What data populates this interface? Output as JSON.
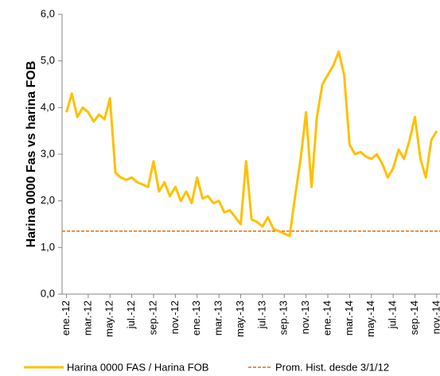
{
  "chart_data": {
    "type": "line",
    "y_label": "Harina 0000 Fas vs harina FOB",
    "xlim": [
      -0.4,
      34.3
    ],
    "xticks": [
      {
        "value": 0,
        "label": "ene.-12"
      },
      {
        "value": 2,
        "label": "mar.-12"
      },
      {
        "value": 4,
        "label": "may.-12"
      },
      {
        "value": 6,
        "label": "jul.-12"
      },
      {
        "value": 8,
        "label": "sep.-12"
      },
      {
        "value": 10,
        "label": "nov.-12"
      },
      {
        "value": 12,
        "label": "ene.-13"
      },
      {
        "value": 14,
        "label": "mar.-13"
      },
      {
        "value": 16,
        "label": "may.-13"
      },
      {
        "value": 18,
        "label": "jul.-13"
      },
      {
        "value": 20,
        "label": "sep.-13"
      },
      {
        "value": 22,
        "label": "nov.-13"
      },
      {
        "value": 24,
        "label": "ene.-14"
      },
      {
        "value": 26,
        "label": "mar.-14"
      },
      {
        "value": 28,
        "label": "may.-14"
      },
      {
        "value": 30,
        "label": "jul.-14"
      },
      {
        "value": 32,
        "label": "sep.-14"
      },
      {
        "value": 34,
        "label": "nov.-14"
      }
    ],
    "ylim": [
      0,
      6
    ],
    "yticks": [
      {
        "value": 0,
        "label": "0,0"
      },
      {
        "value": 1,
        "label": "1,0"
      },
      {
        "value": 2,
        "label": "2,0"
      },
      {
        "value": 3,
        "label": "3,0"
      },
      {
        "value": 4,
        "label": "4,0"
      },
      {
        "value": 5,
        "label": "5,0"
      },
      {
        "value": 6,
        "label": "6,0"
      }
    ],
    "series": [
      {
        "name": "Harina 0000 FAS / Harina FOB",
        "color": "#FFC000",
        "dashed": false,
        "x": [
          0,
          0.5,
          1,
          1.5,
          2,
          2.5,
          3,
          3.5,
          4,
          4.5,
          5,
          5.5,
          6,
          6.5,
          7,
          7.5,
          8,
          8.5,
          9,
          9.5,
          10,
          10.5,
          11,
          11.5,
          12,
          12.5,
          13,
          13.5,
          14,
          14.5,
          15,
          15.5,
          16,
          16.5,
          17,
          17.5,
          18,
          18.5,
          19,
          19.5,
          20,
          20.5,
          21,
          21.5,
          22,
          22.5,
          23,
          23.5,
          24,
          24.5,
          25,
          25.5,
          26,
          26.5,
          27,
          27.5,
          28,
          28.5,
          29,
          29.5,
          30,
          30.5,
          31,
          31.5,
          32,
          32.5,
          33,
          33.5,
          34
        ],
        "values": [
          3.9,
          4.3,
          3.8,
          4.0,
          3.9,
          3.7,
          3.85,
          3.75,
          4.2,
          2.6,
          2.5,
          2.45,
          2.5,
          2.4,
          2.35,
          2.3,
          2.85,
          2.2,
          2.4,
          2.1,
          2.3,
          2.0,
          2.2,
          1.95,
          2.5,
          2.05,
          2.1,
          1.95,
          2.0,
          1.75,
          1.8,
          1.65,
          1.5,
          2.85,
          1.6,
          1.55,
          1.45,
          1.65,
          1.4,
          1.35,
          1.3,
          1.25,
          2.1,
          2.9,
          3.9,
          2.3,
          3.8,
          4.5,
          4.7,
          4.9,
          5.2,
          4.7,
          3.2,
          3.0,
          3.05,
          2.95,
          2.9,
          3.0,
          2.8,
          2.5,
          2.7,
          3.1,
          2.9,
          3.3,
          3.8,
          2.9,
          2.5,
          3.3,
          3.5
        ]
      },
      {
        "name": "Prom. Hist. desde 3/1/12",
        "color": "#E46C0A",
        "dashed": true,
        "x": [
          -0.4,
          34.3
        ],
        "values": [
          1.35,
          1.35
        ]
      }
    ]
  }
}
